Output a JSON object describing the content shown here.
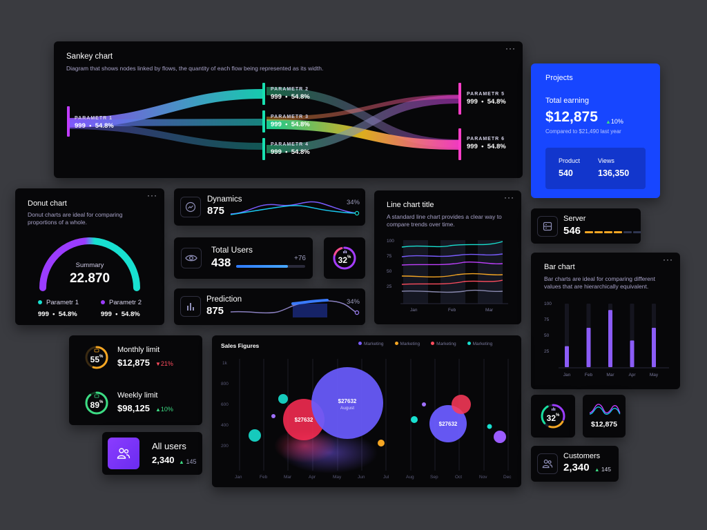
{
  "colors": {
    "accent": "#8b5cf6",
    "cyan": "#18e0d0",
    "blue": "#1746ff",
    "orange": "#f5a623",
    "red": "#ff4d5e",
    "green": "#3ddc84"
  },
  "sankey": {
    "title": "Sankey chart",
    "subtitle": "Diagram that shows nodes linked by flows, the quantity of each flow being represented as its width.",
    "nodes": [
      {
        "label": "PARAMETR 1",
        "value": "999  •  54.8%"
      },
      {
        "label": "PARAMETR 2",
        "value": "999  •  54.8%"
      },
      {
        "label": "PARAMETR 3",
        "value": "999  •  54.8%"
      },
      {
        "label": "PARAMETR 4",
        "value": "999  •  54.8%"
      },
      {
        "label": "PARAMETR 5",
        "value": "999  •  54.8%"
      },
      {
        "label": "PARAMETR 6",
        "value": "999  •  54.8%"
      }
    ]
  },
  "projects": {
    "title": "Projects",
    "earning_label": "Total earning",
    "earning": "$12,875",
    "change": "10%",
    "compare": "Compared to $21,490 last year",
    "product_label": "Product",
    "product": "540",
    "views_label": "Views",
    "views": "136,350"
  },
  "donut": {
    "title": "Donut chart",
    "subtitle": "Donut charts are ideal for comparing proportions of a whole.",
    "summary_label": "Summary",
    "summary": "22.870",
    "legend": [
      {
        "label": "Parametr 1",
        "value": "999  •  54.8%"
      },
      {
        "label": "Parametr 2",
        "value": "999  •  54.8%"
      }
    ]
  },
  "dynamics": {
    "label": "Dynamics",
    "value": "875",
    "percent": "34%"
  },
  "total_users": {
    "label": "Total Users",
    "value": "438",
    "delta": "+76",
    "progress": 0.75
  },
  "ring_small": {
    "value": "32",
    "unit": "%"
  },
  "prediction": {
    "label": "Prediction",
    "value": "875",
    "percent": "34%"
  },
  "linechart": {
    "title": "Line chart title",
    "subtitle": "A standard line chart provides a clear way to compare trends over time.",
    "yticks": [
      "100",
      "75",
      "50",
      "25"
    ],
    "xticks": [
      "Jan",
      "Feb",
      "Mar"
    ]
  },
  "server": {
    "label": "Server",
    "value": "546"
  },
  "barchart": {
    "title": "Bar chart",
    "subtitle": "Bar charts are ideal for comparing different values that are hierarchically equivalent.",
    "yticks": [
      "100",
      "75",
      "50",
      "25"
    ],
    "chart_data": {
      "type": "bar",
      "categories": [
        "Jan",
        "Feb",
        "Mar",
        "Apr",
        "May"
      ],
      "values": [
        33,
        62,
        90,
        42,
        62
      ],
      "ylim": [
        0,
        100
      ]
    }
  },
  "limits": {
    "monthly_label": "Monthly limit",
    "monthly": "$12,875",
    "monthly_change": "21%",
    "monthly_pct": "55",
    "weekly_label": "Weekly limit",
    "weekly": "$98,125",
    "weekly_change": "10%",
    "weekly_pct": "89",
    "unit": "%"
  },
  "all_users": {
    "label": "All users",
    "value": "2,340",
    "delta": "145"
  },
  "sales": {
    "title": "Sales Figures",
    "legend": [
      "Marketing",
      "Marketing",
      "Marketing",
      "Marketing"
    ],
    "yticks": [
      "1k",
      "800",
      "600",
      "400",
      "200"
    ],
    "xticks": [
      "Jan",
      "Feb",
      "Mar",
      "Apr",
      "May",
      "Jun",
      "Jul",
      "Aug",
      "Sep",
      "Oct",
      "Nov",
      "Dec"
    ],
    "bubbles": [
      {
        "label": "$27632",
        "sub": ""
      },
      {
        "label": "$27632",
        "sub": "August"
      },
      {
        "label": "$27632",
        "sub": ""
      }
    ]
  },
  "ring_small2": {
    "value": "32",
    "unit": "%"
  },
  "mini_wave": {
    "value": "$12,875"
  },
  "customers": {
    "label": "Customers",
    "value": "2,340",
    "delta": "145"
  }
}
